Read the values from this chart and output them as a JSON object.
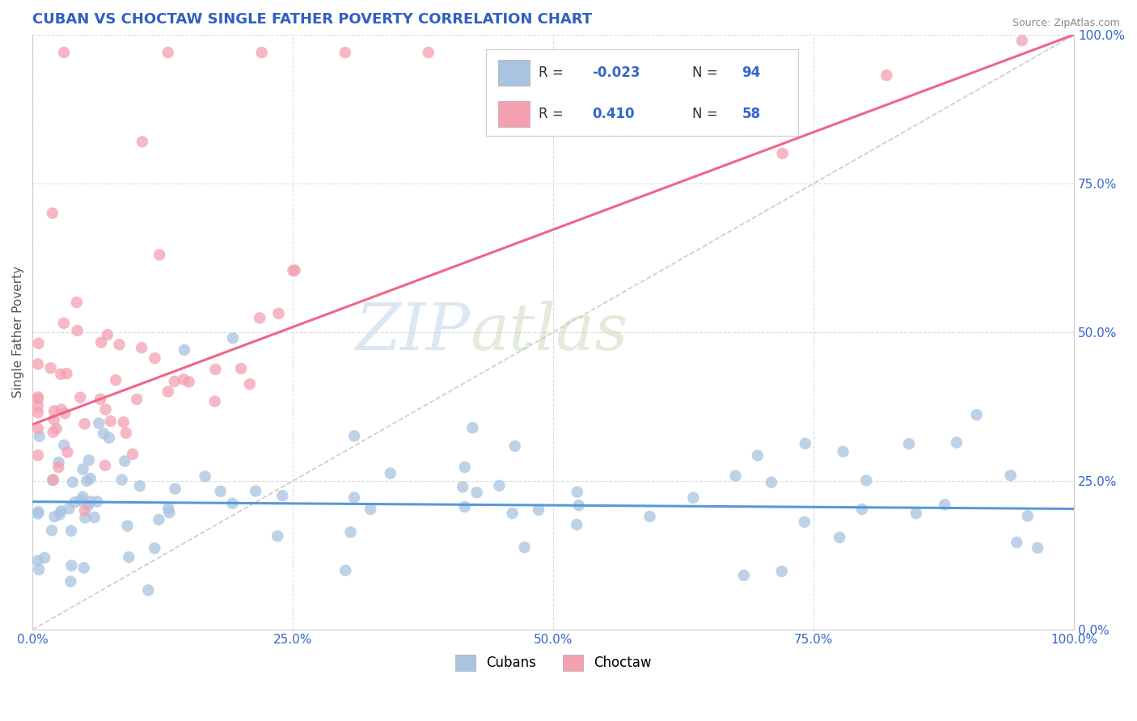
{
  "title": "CUBAN VS CHOCTAW SINGLE FATHER POVERTY CORRELATION CHART",
  "source": "Source: ZipAtlas.com",
  "ylabel": "Single Father Poverty",
  "xlim": [
    0,
    1
  ],
  "ylim": [
    0,
    1
  ],
  "xticks": [
    0.0,
    0.25,
    0.5,
    0.75,
    1.0
  ],
  "xtick_labels": [
    "0.0%",
    "25.0%",
    "50.0%",
    "75.0%",
    "100.0%"
  ],
  "yticks": [
    0.0,
    0.25,
    0.5,
    0.75,
    1.0
  ],
  "ytick_labels": [
    "0.0%",
    "25.0%",
    "50.0%",
    "75.0%",
    "100.0%"
  ],
  "cubans_color": "#a8c4e0",
  "choctaw_color": "#f4a0b0",
  "cubans_line_color": "#5599dd",
  "choctaw_line_color": "#ee6688",
  "cubans_R": -0.023,
  "cubans_N": 94,
  "choctaw_R": 0.41,
  "choctaw_N": 58,
  "watermark_zip": "ZIP",
  "watermark_atlas": "atlas",
  "background_color": "#ffffff",
  "grid_color": "#dddddd",
  "title_color": "#3060c0",
  "source_color": "#888888",
  "legend_R_label_color": "#333333",
  "legend_val_color": "#3366cc",
  "ylabel_color": "#555555",
  "diag_color": "#cccccc",
  "cubans_trend_intercept": 0.215,
  "cubans_trend_slope": -0.012,
  "choctaw_trend_intercept": 0.345,
  "choctaw_trend_slope": 0.655
}
